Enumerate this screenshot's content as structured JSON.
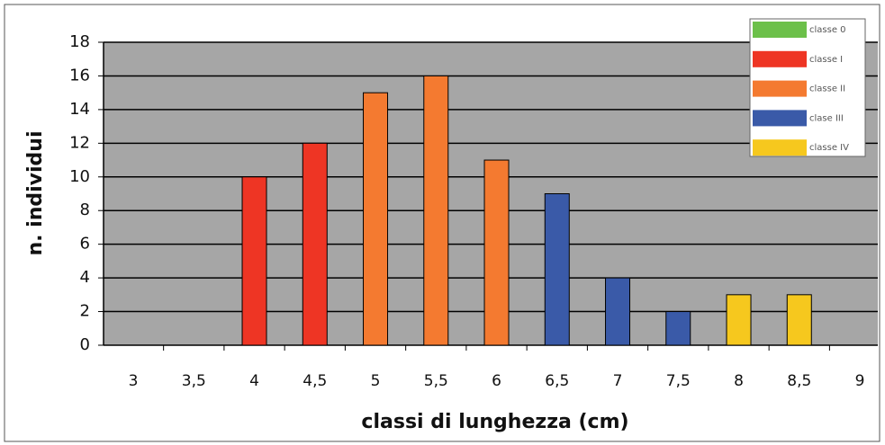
{
  "chart_data": {
    "type": "bar",
    "xlabel": "classi di lunghezza (cm)",
    "ylabel": "n. individui",
    "categories": [
      "3",
      "3,5",
      "4",
      "4,5",
      "5",
      "5,5",
      "6",
      "6,5",
      "7",
      "7,5",
      "8",
      "8,5",
      "9"
    ],
    "series": [
      {
        "name": "classe 0",
        "color": "#6cc04a",
        "values": [
          0,
          0,
          null,
          null,
          null,
          null,
          null,
          null,
          null,
          null,
          null,
          null,
          null
        ]
      },
      {
        "name": "classe I",
        "color": "#ee3524",
        "values": [
          null,
          null,
          10,
          12,
          null,
          null,
          null,
          null,
          null,
          null,
          null,
          null,
          null
        ]
      },
      {
        "name": "classe II",
        "color": "#f47a30",
        "values": [
          null,
          null,
          null,
          null,
          15,
          16,
          11,
          null,
          null,
          null,
          null,
          null,
          null
        ]
      },
      {
        "name": "clase III",
        "color": "#3a5aa8",
        "values": [
          null,
          null,
          null,
          null,
          null,
          null,
          null,
          9,
          4,
          2,
          null,
          null,
          null
        ]
      },
      {
        "name": "classe IV",
        "color": "#f6c81e",
        "values": [
          null,
          null,
          null,
          null,
          null,
          null,
          null,
          null,
          null,
          null,
          3,
          3,
          null
        ]
      }
    ],
    "ylim": [
      0,
      18
    ],
    "yticks": [
      0,
      2,
      4,
      6,
      8,
      10,
      12,
      14,
      16,
      18
    ],
    "grid": true,
    "legend": "top-right"
  }
}
